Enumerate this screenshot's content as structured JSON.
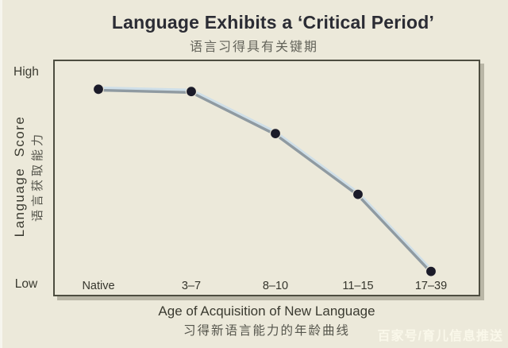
{
  "page": {
    "title": "Language Exhibits a ‘Critical Period’",
    "subtitle_zh": "语言习得具有关键期",
    "watermark": "百家号/育儿信息推送"
  },
  "axes": {
    "y_top_label": "High",
    "y_bottom_label": "Low",
    "y_title": "Language Score",
    "y_title_zh": "语言获取能力",
    "x_title": "Age of Acquisition of New Language",
    "x_title_zh": "习得新语言能力的年龄曲线"
  },
  "colors": {
    "background": "#ece9da",
    "title_text": "#2b2c34",
    "subtitle_text": "#63635a",
    "axis_text": "#3a3a30",
    "axis_zh_text": "#55554c",
    "tick_text": "#35352c",
    "frame_border": "#4d4d40",
    "frame_shadow": "#b9b6a6",
    "line_main": "#8f9aa1",
    "line_highlight": "#cfdfe8",
    "point_fill": "#1b1b29",
    "point_halo": "#e9e6d8",
    "watermark_text": "#fffdf0"
  },
  "chart_data": {
    "type": "line",
    "title": "Language Exhibits a ‘Critical Period’",
    "title_zh": "语言习得具有关键期",
    "categories": [
      "Native",
      "3–7",
      "8–10",
      "11–15",
      "17–39"
    ],
    "series": [
      {
        "name": "Language Score",
        "values": [
          88,
          87,
          69,
          43,
          10
        ]
      }
    ],
    "xlabel": "Age of Acquisition of New Language",
    "xlabel_zh": "习得新语言能力的年龄曲线",
    "ylabel": "Language Score",
    "ylabel_zh": "语言获取能力",
    "y_tick_labels": [
      "High",
      "Low"
    ],
    "ylim": [
      0,
      100
    ],
    "grid": false,
    "legend": false
  }
}
